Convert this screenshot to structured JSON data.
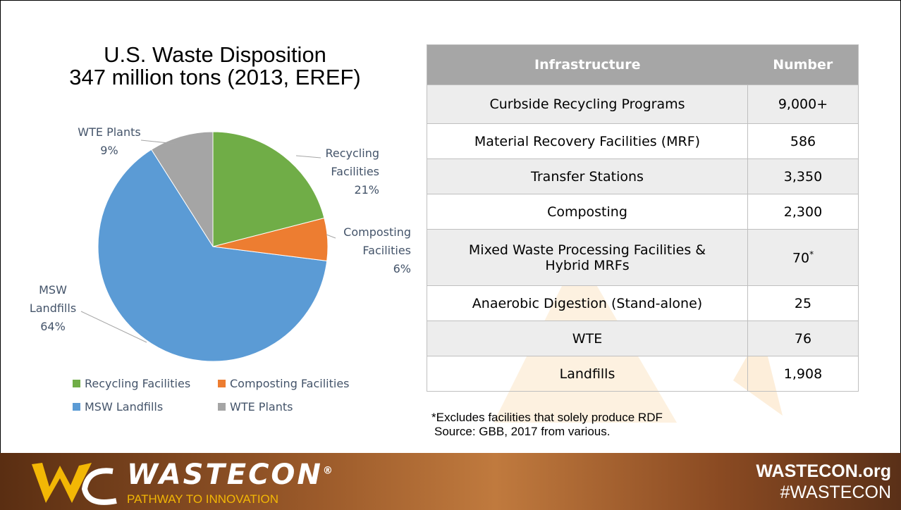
{
  "chart_data": {
    "type": "pie",
    "title": "U.S. Waste Disposition",
    "subtitle": "347 million tons (2013, EREF)",
    "categories": [
      "Recycling Facilities",
      "Composting Facilities",
      "MSW Landfills",
      "WTE Plants"
    ],
    "values": [
      21,
      6,
      64,
      9
    ],
    "value_labels": [
      "21%",
      "6%",
      "64%",
      "9%"
    ],
    "colors": [
      "#70ad47",
      "#ed7d31",
      "#5b9bd5",
      "#a5a5a5"
    ],
    "legend": "bottom"
  },
  "table": {
    "header": [
      "Infrastructure",
      "Number"
    ],
    "rows": [
      {
        "name": "Curbside Recycling Programs",
        "number": "9,000+"
      },
      {
        "name": "Material Recovery Facilities (MRF)",
        "number": "586"
      },
      {
        "name": "Transfer Stations",
        "number": "3,350"
      },
      {
        "name": "Composting",
        "number": "2,300"
      },
      {
        "name": "Mixed Waste Processing Facilities & Hybrid MRFs",
        "number": "70",
        "note": "*"
      },
      {
        "name": "Anaerobic Digestion (Stand-alone)",
        "number": "25"
      },
      {
        "name": "WTE",
        "number": "76"
      },
      {
        "name": "Landfills",
        "number": "1,908"
      }
    ]
  },
  "footnote": {
    "line1": "*Excludes facilities that solely produce RDF",
    "line2": "Source: GBB, 2017 from various."
  },
  "footer": {
    "brand": "WASTECON",
    "registered": "®",
    "tagline": "PATHWAY TO INNOVATION",
    "site": "WASTECON.org",
    "hashtag": "#WASTECON"
  }
}
